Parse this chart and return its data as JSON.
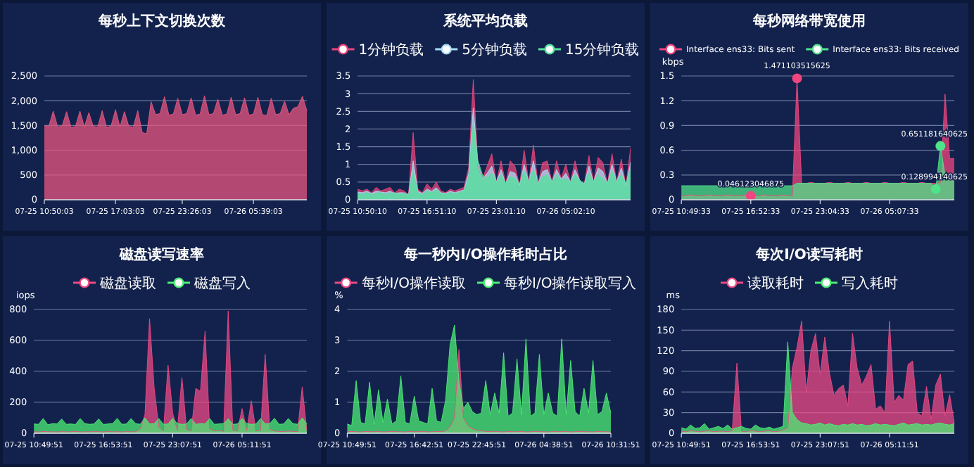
{
  "chart_data": [
    {
      "type": "area",
      "title": "每秒上下文切换次数",
      "grid": "y",
      "categories": [
        "07-25 10:50:03",
        null,
        null,
        null,
        null,
        null,
        null,
        null,
        null,
        null,
        null,
        null,
        null,
        null,
        null,
        null,
        "07-25 17:03:03",
        null,
        null,
        null,
        null,
        null,
        null,
        null,
        null,
        null,
        null,
        null,
        null,
        null,
        null,
        "07-25 23:26:03",
        null,
        null,
        null,
        null,
        null,
        null,
        null,
        null,
        null,
        null,
        null,
        null,
        null,
        null,
        null,
        "07-26 05:39:03",
        null,
        null,
        null,
        null,
        null,
        null,
        null,
        null,
        null,
        null,
        null,
        null
      ],
      "ylim": [
        0,
        2500
      ],
      "yticks": [
        0,
        500,
        {
          "value": 1000,
          "label": "1,000"
        },
        {
          "value": 1500,
          "label": "1,500"
        },
        {
          "value": 2000,
          "label": "2,000"
        },
        {
          "value": 2500,
          "label": "2,500"
        }
      ],
      "series": [
        {
          "color": "#e9577f",
          "values": [
            1500,
            1480,
            1790,
            1470,
            1490,
            1780,
            1460,
            1480,
            1790,
            1470,
            1760,
            1480,
            1470,
            1800,
            1460,
            1490,
            1820,
            1470,
            1780,
            1480,
            1470,
            1800,
            1360,
            1330,
            1980,
            1720,
            1740,
            2080,
            1710,
            1730,
            2050,
            1720,
            1740,
            2060,
            1710,
            1730,
            2100,
            1720,
            1740,
            2030,
            1710,
            1730,
            2070,
            1720,
            1740,
            2060,
            1710,
            1730,
            2070,
            1720,
            1700,
            2050,
            1720,
            1740,
            1990,
            1720,
            1850,
            1880,
            2090,
            1800
          ]
        }
      ]
    },
    {
      "type": "area",
      "title": "系统平均负载",
      "grid": "y",
      "legend": "top",
      "categories": [
        "07-25 10:50:10",
        null,
        null,
        null,
        null,
        null,
        null,
        null,
        null,
        null,
        null,
        null,
        null,
        null,
        null,
        "07-25 16:51:10",
        null,
        null,
        null,
        null,
        null,
        null,
        null,
        null,
        null,
        null,
        null,
        null,
        null,
        null,
        "07-25 23:01:10",
        null,
        null,
        null,
        null,
        null,
        null,
        null,
        null,
        null,
        null,
        null,
        null,
        null,
        null,
        "07-26 05:02:10",
        null,
        null,
        null,
        null,
        null,
        null,
        null,
        null,
        null,
        null,
        null,
        null,
        null,
        null
      ],
      "ylim": [
        0,
        3.5
      ],
      "yticks": [
        0,
        0.5,
        1,
        1.5,
        2,
        2.5,
        3,
        3.5
      ],
      "series": [
        {
          "name": "1分钟负载",
          "color": "#e8457a",
          "values": [
            0.3,
            0.25,
            0.3,
            0.2,
            0.35,
            0.25,
            0.3,
            0.35,
            0.2,
            0.3,
            0.25,
            0.15,
            1.9,
            0.3,
            0.2,
            0.45,
            0.3,
            0.5,
            0.25,
            0.2,
            0.3,
            0.25,
            0.3,
            0.35,
            0.9,
            3.4,
            0.95,
            0.6,
            0.95,
            1.3,
            0.5,
            1.1,
            0.45,
            1.1,
            0.95,
            0.4,
            1.4,
            0.5,
            1.55,
            0.45,
            1.05,
            1.1,
            0.5,
            1.1,
            0.6,
            1.0,
            0.5,
            1.1,
            0.55,
            0.45,
            1.25,
            0.5,
            1.2,
            1.05,
            0.45,
            1.3,
            0.5,
            1.15,
            0.4,
            1.45
          ]
        },
        {
          "name": "5分钟负载",
          "color": "#a8dcf5",
          "values": [
            0.22,
            0.2,
            0.24,
            0.18,
            0.24,
            0.22,
            0.2,
            0.24,
            0.18,
            0.2,
            0.2,
            0.14,
            1.1,
            0.24,
            0.18,
            0.3,
            0.24,
            0.34,
            0.2,
            0.18,
            0.24,
            0.2,
            0.24,
            0.28,
            0.75,
            2.6,
            1.0,
            0.6,
            0.75,
            0.95,
            0.5,
            0.85,
            0.45,
            0.8,
            0.75,
            0.4,
            1.0,
            0.5,
            1.1,
            0.45,
            0.8,
            0.85,
            0.5,
            0.85,
            0.58,
            0.75,
            0.5,
            0.85,
            0.55,
            0.45,
            0.95,
            0.5,
            0.9,
            0.8,
            0.45,
            1.0,
            0.5,
            0.9,
            0.4,
            1.05
          ]
        },
        {
          "name": "15分钟负载",
          "color": "#4fe39a",
          "values": [
            0.18,
            0.15,
            0.2,
            0.15,
            0.18,
            0.2,
            0.15,
            0.18,
            0.2,
            0.15,
            0.18,
            0.12,
            0.8,
            0.2,
            0.15,
            0.25,
            0.2,
            0.28,
            0.18,
            0.15,
            0.2,
            0.18,
            0.2,
            0.25,
            0.6,
            2.15,
            1.1,
            0.7,
            0.6,
            0.75,
            0.5,
            0.7,
            0.45,
            0.65,
            0.6,
            0.45,
            0.8,
            0.5,
            0.85,
            0.45,
            0.65,
            0.7,
            0.5,
            0.7,
            0.55,
            0.6,
            0.5,
            0.7,
            0.55,
            0.45,
            0.75,
            0.5,
            0.7,
            0.6,
            0.45,
            0.8,
            0.5,
            0.7,
            0.45,
            0.85
          ]
        }
      ]
    },
    {
      "type": "area",
      "title": "每秒网络带宽使用",
      "grid": "y",
      "legend": "top",
      "ylabel": "kbps",
      "categories": [
        "07-25 10:49:33",
        null,
        null,
        null,
        null,
        null,
        null,
        null,
        null,
        null,
        null,
        null,
        null,
        null,
        null,
        "07-25 16:52:33",
        null,
        null,
        null,
        null,
        null,
        null,
        null,
        null,
        null,
        null,
        null,
        null,
        null,
        null,
        "07-25 23:04:33",
        null,
        null,
        null,
        null,
        null,
        null,
        null,
        null,
        null,
        null,
        null,
        null,
        null,
        null,
        "07-26 05:07:33",
        null,
        null,
        null,
        null,
        null,
        null,
        null,
        null,
        null,
        null,
        null,
        null,
        null,
        null
      ],
      "ylim": [
        0,
        1.5
      ],
      "yticks": [
        0,
        0.3,
        0.6,
        0.9,
        1.2,
        1.5
      ],
      "series": [
        {
          "name": "Interface ens33: Bits sent",
          "color": "#f0457f",
          "values": [
            0.05,
            0.05,
            0.06,
            0.05,
            0.05,
            0.05,
            0.06,
            0.05,
            0.05,
            0.05,
            0.06,
            0.05,
            0.05,
            0.05,
            0.06,
            0.046123046875,
            0.05,
            0.05,
            0.06,
            0.05,
            0.05,
            0.05,
            0.06,
            0.05,
            0.05,
            1.471103515625,
            0.2,
            0.2,
            0.21,
            0.2,
            0.2,
            0.2,
            0.21,
            0.2,
            0.2,
            0.2,
            0.21,
            0.2,
            0.2,
            0.2,
            0.21,
            0.2,
            0.2,
            0.2,
            0.21,
            0.2,
            0.2,
            0.2,
            0.21,
            0.2,
            0.2,
            0.2,
            0.21,
            0.2,
            0.2,
            0.2,
            0.21,
            1.28,
            0.5,
            0.5
          ],
          "value_labels": [
            null,
            null,
            null,
            null,
            null,
            null,
            null,
            null,
            null,
            null,
            null,
            null,
            null,
            null,
            null,
            "0.046123046875",
            null,
            null,
            null,
            null,
            null,
            null,
            null,
            null,
            null,
            "1.471103515625",
            null,
            null,
            null,
            null,
            null,
            null,
            null,
            null,
            null,
            null,
            null,
            null,
            null,
            null,
            null,
            null,
            null,
            null,
            null,
            null,
            null,
            null,
            null,
            null,
            null,
            null,
            null,
            null,
            null,
            null,
            null,
            null,
            null,
            null
          ]
        },
        {
          "name": "Interface ens33: Bits received",
          "color": "#4fe38a",
          "values": [
            0.17,
            0.17,
            0.17,
            0.17,
            0.17,
            0.17,
            0.17,
            0.17,
            0.17,
            0.17,
            0.17,
            0.17,
            0.17,
            0.17,
            0.17,
            0.17,
            0.17,
            0.17,
            0.17,
            0.17,
            0.17,
            0.17,
            0.17,
            0.17,
            0.17,
            0.2,
            0.2,
            0.2,
            0.2,
            0.2,
            0.2,
            0.2,
            0.2,
            0.2,
            0.2,
            0.2,
            0.2,
            0.2,
            0.2,
            0.2,
            0.2,
            0.2,
            0.2,
            0.2,
            0.2,
            0.2,
            0.2,
            0.2,
            0.2,
            0.2,
            0.2,
            0.2,
            0.2,
            0.2,
            0.2,
            0.128994140625,
            0.651181640625,
            0.3,
            0.25,
            0.22
          ],
          "value_labels": [
            null,
            null,
            null,
            null,
            null,
            null,
            null,
            null,
            null,
            null,
            null,
            null,
            null,
            null,
            null,
            null,
            null,
            null,
            null,
            null,
            null,
            null,
            null,
            null,
            null,
            null,
            null,
            null,
            null,
            null,
            null,
            null,
            null,
            null,
            null,
            null,
            null,
            null,
            null,
            null,
            null,
            null,
            null,
            null,
            null,
            null,
            null,
            null,
            null,
            null,
            null,
            null,
            null,
            null,
            null,
            "0.128994140625",
            "0.651181640625",
            null,
            null,
            null
          ]
        }
      ]
    },
    {
      "type": "area",
      "title": "磁盘读写速率",
      "grid": "y",
      "legend": "top",
      "ylabel": "iops",
      "categories": [
        "07-25 10:49:51",
        null,
        null,
        null,
        null,
        null,
        null,
        null,
        null,
        null,
        null,
        null,
        null,
        null,
        null,
        "07-25 16:53:51",
        null,
        null,
        null,
        null,
        null,
        null,
        null,
        null,
        null,
        null,
        null,
        null,
        null,
        null,
        "07-25 23:07:51",
        null,
        null,
        null,
        null,
        null,
        null,
        null,
        null,
        null,
        null,
        null,
        null,
        null,
        null,
        "07-26 05:11:51",
        null,
        null,
        null,
        null,
        null,
        null,
        null,
        null,
        null,
        null,
        null,
        null,
        null,
        null
      ],
      "ylim": [
        0,
        800
      ],
      "yticks": [
        0,
        200,
        400,
        600,
        800
      ],
      "series": [
        {
          "name": "磁盘读取",
          "color": "#ec4a84",
          "values": [
            10,
            8,
            12,
            9,
            10,
            8,
            11,
            9,
            10,
            12,
            8,
            10,
            9,
            11,
            10,
            8,
            12,
            9,
            10,
            8,
            11,
            9,
            10,
            30,
            120,
            740,
            290,
            40,
            15,
            440,
            130,
            20,
            360,
            25,
            15,
            290,
            270,
            660,
            30,
            15,
            20,
            12,
            790,
            20,
            15,
            160,
            18,
            210,
            15,
            20,
            510,
            25,
            15,
            12,
            10,
            14,
            12,
            10,
            300,
            15
          ]
        },
        {
          "name": "磁盘写入",
          "color": "#4ced74",
          "values": [
            60,
            58,
            95,
            55,
            62,
            60,
            92,
            58,
            60,
            57,
            95,
            62,
            58,
            60,
            93,
            57,
            60,
            62,
            96,
            58,
            60,
            95,
            62,
            58,
            100,
            60,
            62,
            95,
            58,
            60,
            97,
            62,
            58,
            60,
            96,
            58,
            62,
            60,
            95,
            58,
            60,
            62,
            94,
            58,
            60,
            96,
            62,
            58,
            60,
            95,
            60,
            62,
            97,
            58,
            60,
            95,
            62,
            58,
            100,
            60
          ]
        }
      ]
    },
    {
      "type": "area",
      "title": "每一秒内I/O操作耗时占比",
      "grid": "y",
      "legend": "top",
      "ylabel": "%",
      "categories": [
        "07-25 10:49:51",
        null,
        null,
        null,
        null,
        null,
        null,
        null,
        null,
        null,
        null,
        null,
        null,
        null,
        null,
        "07-25 16:42:51",
        null,
        null,
        null,
        null,
        null,
        null,
        null,
        null,
        null,
        null,
        null,
        null,
        null,
        "07-25 22:45:51",
        null,
        null,
        null,
        null,
        null,
        null,
        null,
        null,
        null,
        null,
        null,
        null,
        null,
        null,
        "07-26 04:38:51",
        null,
        null,
        null,
        null,
        null,
        null,
        null,
        null,
        null,
        null,
        null,
        null,
        null,
        null,
        "07-26 10:31:51"
      ],
      "ylim": [
        0,
        4
      ],
      "yticks": [
        0,
        1,
        2,
        3,
        4
      ],
      "series": [
        {
          "name": "每秒I/O操作读取",
          "color": "#ec4a84",
          "values": [
            0.05,
            0.06,
            0.05,
            0.04,
            0.06,
            0.05,
            0.05,
            0.06,
            0.04,
            0.05,
            0.06,
            0.05,
            0.05,
            0.04,
            0.06,
            0.05,
            0.05,
            0.06,
            0.04,
            0.05,
            0.06,
            0.05,
            0.08,
            0.2,
            0.5,
            2.7,
            0.5,
            0.25,
            0.15,
            0.1,
            0.08,
            0.06,
            0.05,
            0.06,
            0.05,
            0.04,
            0.06,
            0.05,
            0.05,
            0.06,
            0.04,
            0.05,
            0.06,
            0.05,
            0.05,
            0.04,
            0.06,
            0.05,
            0.05,
            0.06,
            0.04,
            0.05,
            0.06,
            0.05,
            0.05,
            0.04,
            0.06,
            0.05,
            0.05,
            0.04
          ]
        },
        {
          "name": "每秒I/O操作读取写入",
          "color": "#4ced74",
          "values": [
            0.3,
            0.25,
            1.7,
            0.35,
            0.3,
            1.65,
            0.28,
            1.4,
            0.35,
            1.1,
            0.3,
            0.4,
            1.85,
            0.35,
            0.3,
            1.2,
            0.4,
            0.35,
            0.3,
            1.45,
            0.4,
            0.35,
            1.05,
            2.85,
            3.5,
            1.7,
            0.8,
            1.0,
            0.7,
            0.6,
            0.65,
            1.7,
            0.6,
            1.3,
            0.65,
            2.6,
            0.55,
            0.65,
            2.4,
            0.6,
            3.05,
            0.55,
            0.65,
            2.55,
            0.6,
            1.3,
            0.65,
            0.55,
            3.05,
            0.6,
            2.35,
            0.7,
            0.55,
            1.45,
            0.65,
            2.35,
            0.6,
            0.7,
            1.3,
            0.65
          ]
        }
      ]
    },
    {
      "type": "area",
      "title": "每次I/O读写耗时",
      "grid": "y",
      "legend": "top",
      "ylabel": "ms",
      "categories": [
        "07-25 10:49:51",
        null,
        null,
        null,
        null,
        null,
        null,
        null,
        null,
        null,
        null,
        null,
        null,
        null,
        null,
        "07-25 16:53:51",
        null,
        null,
        null,
        null,
        null,
        null,
        null,
        null,
        null,
        null,
        null,
        null,
        null,
        null,
        "07-25 23:07:51",
        null,
        null,
        null,
        null,
        null,
        null,
        null,
        null,
        null,
        null,
        null,
        null,
        null,
        null,
        "07-26 05:11:51",
        null,
        null,
        null,
        null,
        null,
        null,
        null,
        null,
        null,
        null,
        null,
        null,
        null,
        null
      ],
      "ylim": [
        0,
        180
      ],
      "yticks": [
        0,
        30,
        60,
        90,
        120,
        150,
        180
      ],
      "series": [
        {
          "name": "读取耗时",
          "color": "#ec4a84",
          "values": [
            3,
            2,
            4,
            3,
            2,
            3,
            4,
            2,
            3,
            3,
            2,
            4,
            102,
            3,
            2,
            4,
            3,
            2,
            3,
            4,
            2,
            3,
            5,
            8,
            95,
            125,
            163,
            60,
            120,
            145,
            85,
            140,
            88,
            55,
            65,
            70,
            40,
            145,
            95,
            70,
            83,
            100,
            35,
            40,
            30,
            163,
            45,
            55,
            48,
            100,
            105,
            30,
            25,
            68,
            20,
            70,
            86,
            25,
            56,
            15
          ]
        },
        {
          "name": "写入耗时",
          "color": "#4ced74",
          "values": [
            8,
            6,
            12,
            7,
            8,
            14,
            6,
            8,
            10,
            7,
            12,
            6,
            8,
            10,
            7,
            6,
            12,
            8,
            7,
            9,
            6,
            8,
            10,
            133,
            30,
            20,
            15,
            14,
            12,
            13,
            15,
            12,
            14,
            12,
            11,
            13,
            12,
            14,
            12,
            13,
            11,
            12,
            14,
            12,
            13,
            12,
            11,
            13,
            15,
            12,
            13,
            14,
            12,
            13,
            12,
            14,
            15,
            13,
            12,
            14
          ]
        }
      ]
    }
  ]
}
